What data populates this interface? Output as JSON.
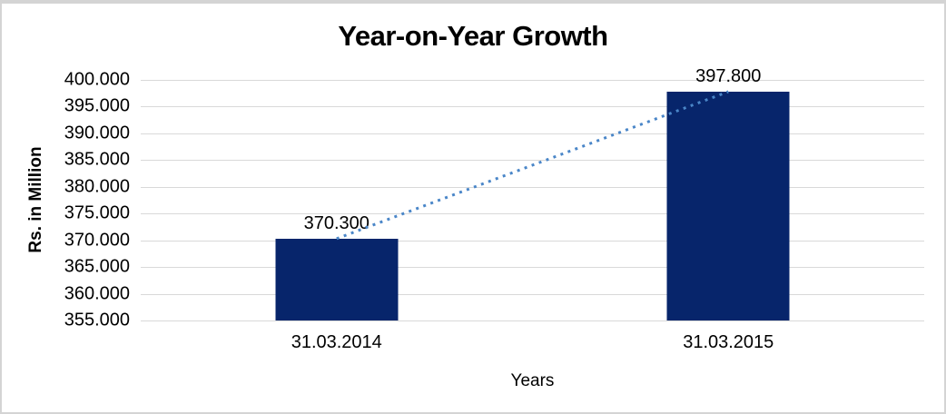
{
  "chart_data": {
    "type": "bar",
    "title": "Year-on-Year Growth",
    "categories": [
      "31.03.2014",
      "31.03.2015"
    ],
    "values": [
      370.3,
      397.8
    ],
    "data_labels": [
      "370.300",
      "397.800"
    ],
    "xlabel": "Years",
    "ylabel": "Rs. in Million",
    "ylim": [
      355,
      400
    ],
    "ytick_step": 5,
    "ytick_labels": [
      "400.000",
      "395.000",
      "390.000",
      "385.000",
      "380.000",
      "375.000",
      "370.000",
      "365.000",
      "360.000",
      "355.000"
    ],
    "grid": true,
    "legend": "none",
    "bar_color": "#07256b",
    "trendline": {
      "style": "dotted",
      "color": "#4a86c8"
    },
    "gridline_color": "#d9d9d9",
    "frame_color": "#d4d4d4",
    "text_color": "#000000"
  }
}
